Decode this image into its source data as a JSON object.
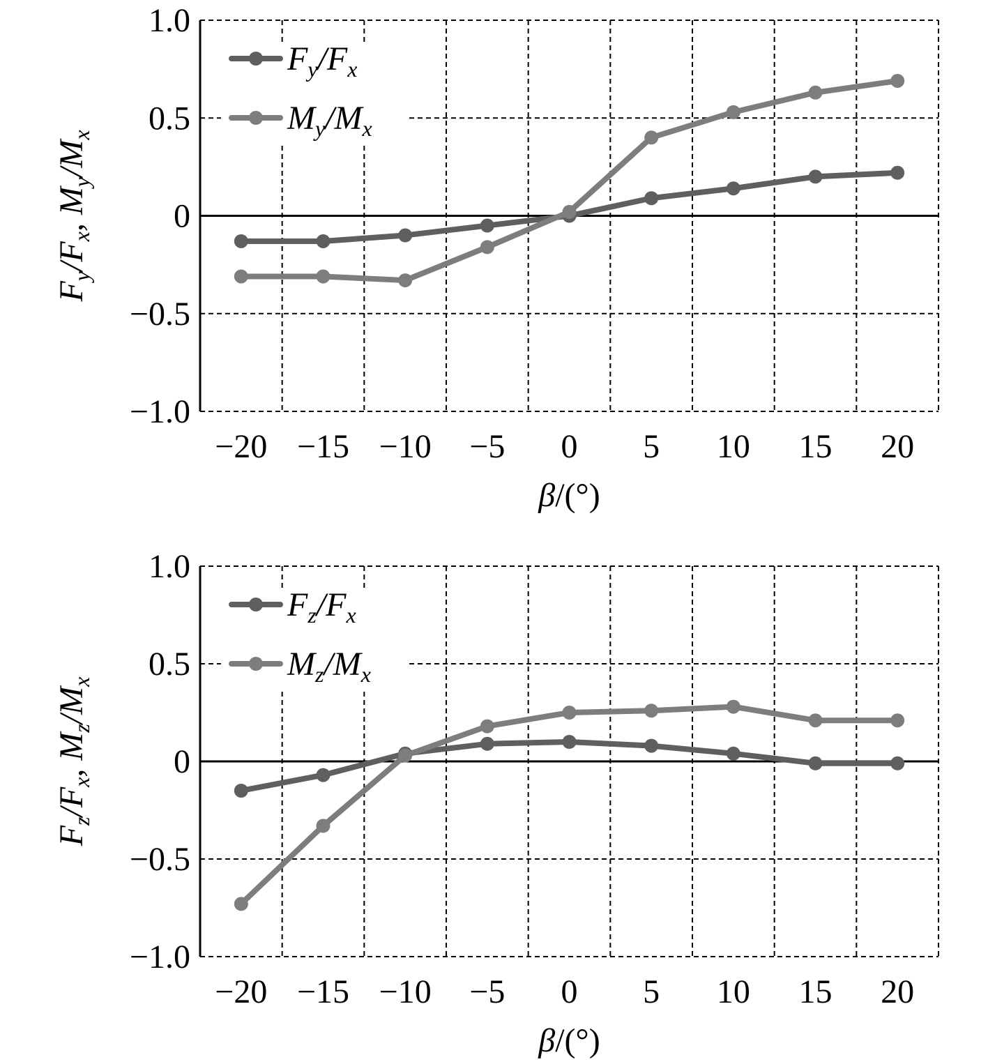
{
  "colors": {
    "series1": "#5f5f5f",
    "series2": "#7d7d7d",
    "grid": "#000000",
    "zero_line": "#000000"
  },
  "chart_data": [
    {
      "type": "line",
      "x": [
        -20,
        -15,
        -10,
        -5,
        0,
        5,
        10,
        15,
        20
      ],
      "xlim": [
        -22.5,
        22.5
      ],
      "ylim": [
        -1.0,
        1.0
      ],
      "x_ticks": [
        "−20",
        "−15",
        "−10",
        "−5",
        "0",
        "5",
        "10",
        "15",
        "20"
      ],
      "y_ticks": [
        {
          "value": 1.0,
          "label": "1.0"
        },
        {
          "value": 0.5,
          "label": "0.5"
        },
        {
          "value": 0,
          "label": "0"
        },
        {
          "value": -0.5,
          "label": "−0.5"
        },
        {
          "value": -1.0,
          "label": "−1.0"
        }
      ],
      "xlabel": {
        "symbol": "β",
        "rest": "/(°)"
      },
      "ylabel": {
        "p1": "F",
        "s1": "y",
        "p2": "/F",
        "s2": "x",
        "p3": ", M",
        "s3": "y",
        "p4": "/M",
        "s4": "x"
      },
      "grid": true,
      "legend_position": "top-left",
      "series": [
        {
          "name": "Fy/Fx",
          "legend": {
            "a": "F",
            "a_sub": "y",
            "b": "/F",
            "b_sub": "x"
          },
          "values": [
            -0.13,
            -0.13,
            -0.1,
            -0.05,
            0.0,
            0.09,
            0.14,
            0.2,
            0.22
          ]
        },
        {
          "name": "My/Mx",
          "legend": {
            "a": "M",
            "a_sub": "y",
            "b": "/M",
            "b_sub": "x"
          },
          "values": [
            -0.31,
            -0.31,
            -0.33,
            -0.16,
            0.02,
            0.4,
            0.53,
            0.63,
            0.69
          ]
        }
      ]
    },
    {
      "type": "line",
      "x": [
        -20,
        -15,
        -10,
        -5,
        0,
        5,
        10,
        15,
        20
      ],
      "xlim": [
        -22.5,
        22.5
      ],
      "ylim": [
        -1.0,
        1.0
      ],
      "x_ticks": [
        "−20",
        "−15",
        "−10",
        "−5",
        "0",
        "5",
        "10",
        "15",
        "20"
      ],
      "y_ticks": [
        {
          "value": 1.0,
          "label": "1.0"
        },
        {
          "value": 0.5,
          "label": "0.5"
        },
        {
          "value": 0,
          "label": "0"
        },
        {
          "value": -0.5,
          "label": "−0.5"
        },
        {
          "value": -1.0,
          "label": "−1.0"
        }
      ],
      "xlabel": {
        "symbol": "β",
        "rest": "/(°)"
      },
      "ylabel": {
        "p1": "F",
        "s1": "z",
        "p2": "/F",
        "s2": "x",
        "p3": ", M",
        "s3": "z",
        "p4": "/M",
        "s4": "x"
      },
      "grid": true,
      "legend_position": "top-left",
      "series": [
        {
          "name": "Fz/Fx",
          "legend": {
            "a": "F",
            "a_sub": "z",
            "b": "/F",
            "b_sub": "x"
          },
          "values": [
            -0.15,
            -0.07,
            0.04,
            0.09,
            0.1,
            0.08,
            0.04,
            -0.01,
            -0.01
          ]
        },
        {
          "name": "Mz/Mx",
          "legend": {
            "a": "M",
            "a_sub": "z",
            "b": "/M",
            "b_sub": "x"
          },
          "values": [
            -0.73,
            -0.33,
            0.03,
            0.18,
            0.25,
            0.26,
            0.28,
            0.21,
            0.21
          ]
        }
      ]
    }
  ]
}
